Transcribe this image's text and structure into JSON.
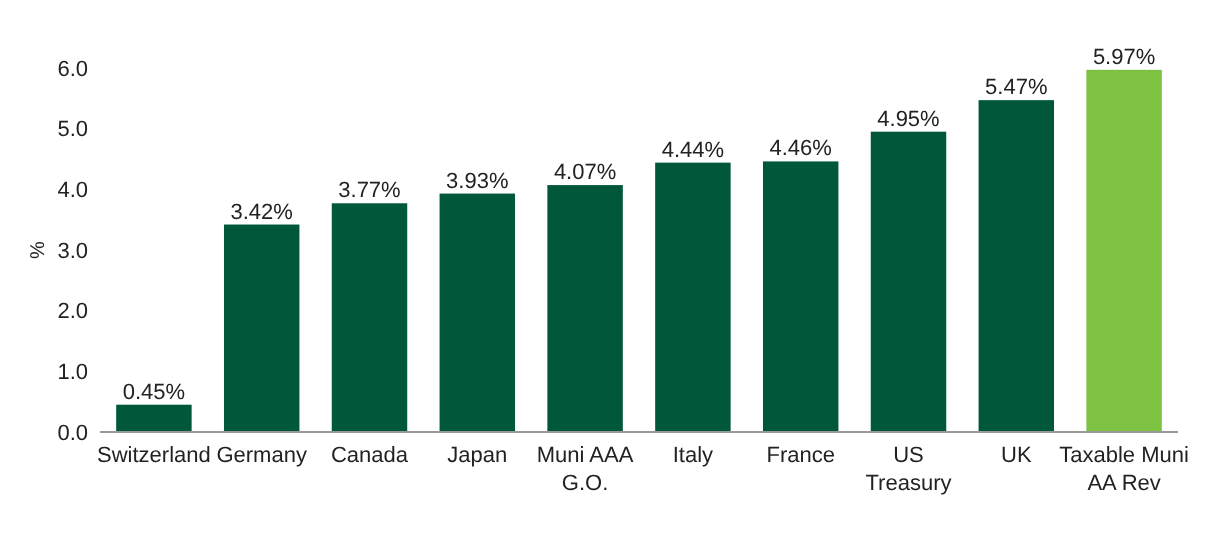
{
  "chart_data": {
    "type": "bar",
    "ylabel": "%",
    "categories": [
      "Switzerland",
      "Germany",
      "Canada",
      "Japan",
      "Muni AAA G.O.",
      "Italy",
      "France",
      "US Treasury",
      "UK",
      "Taxable Muni AA Rev"
    ],
    "values": [
      0.45,
      3.42,
      3.77,
      3.93,
      4.07,
      4.44,
      4.46,
      4.95,
      5.47,
      5.97
    ],
    "value_labels": [
      "0.45%",
      "3.42%",
      "3.77%",
      "3.93%",
      "4.07%",
      "4.44%",
      "4.46%",
      "4.95%",
      "5.47%",
      "5.97%"
    ],
    "colors": [
      "#00573a",
      "#00573a",
      "#00573a",
      "#00573a",
      "#00573a",
      "#00573a",
      "#00573a",
      "#00573a",
      "#00573a",
      "#7dc242"
    ],
    "ylim": [
      0,
      6
    ],
    "yticks": [
      {
        "value": 0,
        "label": "0.0"
      },
      {
        "value": 1,
        "label": "1.0"
      },
      {
        "value": 2,
        "label": "2.0"
      },
      {
        "value": 3,
        "label": "3.0"
      },
      {
        "value": 4,
        "label": "4.0"
      },
      {
        "value": 5,
        "label": "5.0"
      },
      {
        "value": 6,
        "label": "6.0"
      }
    ],
    "grid": false
  }
}
